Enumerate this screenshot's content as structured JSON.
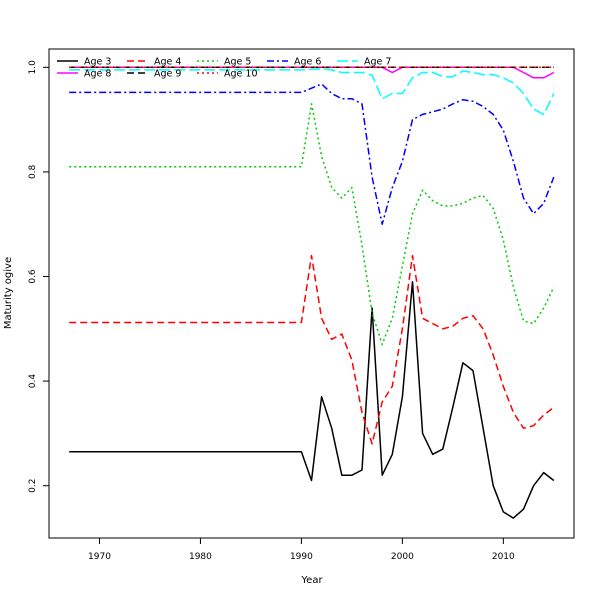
{
  "chart_data": {
    "type": "line",
    "title": "",
    "xlabel": "Year",
    "ylabel": "Maturity ogive",
    "xlim": [
      1965,
      2017
    ],
    "ylim": [
      0.1,
      1.035
    ],
    "xticks": [
      1970,
      1980,
      1990,
      2000,
      2010
    ],
    "yticks": [
      0.2,
      0.4,
      0.6,
      0.8,
      1.0
    ],
    "ytick_labels": [
      "0.2",
      "0.4",
      "0.6",
      "0.8",
      "1.0"
    ],
    "grid": false,
    "legend_position": "top-left",
    "legend_columns": 5,
    "series": [
      {
        "name": "Age 3",
        "color": "#000000",
        "dash": "solid",
        "points": [
          [
            1967,
            0.265
          ],
          [
            1990,
            0.265
          ],
          [
            1991,
            0.21
          ],
          [
            1992,
            0.37
          ],
          [
            1993,
            0.31
          ],
          [
            1994,
            0.22
          ],
          [
            1995,
            0.22
          ],
          [
            1996,
            0.23
          ],
          [
            1997,
            0.54
          ],
          [
            1998,
            0.22
          ],
          [
            1999,
            0.26
          ],
          [
            2000,
            0.37
          ],
          [
            2001,
            0.59
          ],
          [
            2002,
            0.3
          ],
          [
            2003,
            0.26
          ],
          [
            2004,
            0.27
          ],
          [
            2005,
            0.35
          ],
          [
            2006,
            0.435
          ],
          [
            2007,
            0.42
          ],
          [
            2008,
            0.31
          ],
          [
            2009,
            0.2
          ],
          [
            2010,
            0.15
          ],
          [
            2011,
            0.138
          ],
          [
            2012,
            0.155
          ],
          [
            2013,
            0.2
          ],
          [
            2014,
            0.225
          ],
          [
            2015,
            0.21
          ]
        ]
      },
      {
        "name": "Age 4",
        "color": "#ff0000",
        "dash": "dashed",
        "points": [
          [
            1967,
            0.512
          ],
          [
            1990,
            0.512
          ],
          [
            1991,
            0.64
          ],
          [
            1992,
            0.52
          ],
          [
            1993,
            0.48
          ],
          [
            1994,
            0.49
          ],
          [
            1995,
            0.44
          ],
          [
            1996,
            0.34
          ],
          [
            1997,
            0.28
          ],
          [
            1998,
            0.36
          ],
          [
            1999,
            0.39
          ],
          [
            2000,
            0.5
          ],
          [
            2001,
            0.64
          ],
          [
            2002,
            0.52
          ],
          [
            2003,
            0.51
          ],
          [
            2004,
            0.5
          ],
          [
            2005,
            0.505
          ],
          [
            2006,
            0.52
          ],
          [
            2007,
            0.525
          ],
          [
            2008,
            0.5
          ],
          [
            2009,
            0.45
          ],
          [
            2010,
            0.39
          ],
          [
            2011,
            0.34
          ],
          [
            2012,
            0.31
          ],
          [
            2013,
            0.315
          ],
          [
            2014,
            0.335
          ],
          [
            2015,
            0.35
          ]
        ]
      },
      {
        "name": "Age 5",
        "color": "#00cd00",
        "dash": "dotted",
        "points": [
          [
            1967,
            0.81
          ],
          [
            1990,
            0.81
          ],
          [
            1991,
            0.93
          ],
          [
            1992,
            0.83
          ],
          [
            1993,
            0.77
          ],
          [
            1994,
            0.75
          ],
          [
            1995,
            0.77
          ],
          [
            1996,
            0.66
          ],
          [
            1997,
            0.53
          ],
          [
            1998,
            0.47
          ],
          [
            1999,
            0.52
          ],
          [
            2000,
            0.62
          ],
          [
            2001,
            0.72
          ],
          [
            2002,
            0.765
          ],
          [
            2003,
            0.745
          ],
          [
            2004,
            0.735
          ],
          [
            2005,
            0.735
          ],
          [
            2006,
            0.74
          ],
          [
            2007,
            0.75
          ],
          [
            2008,
            0.755
          ],
          [
            2009,
            0.73
          ],
          [
            2010,
            0.67
          ],
          [
            2011,
            0.58
          ],
          [
            2012,
            0.515
          ],
          [
            2013,
            0.51
          ],
          [
            2014,
            0.54
          ],
          [
            2015,
            0.58
          ]
        ]
      },
      {
        "name": "Age 6",
        "color": "#0000ff",
        "dash": "dashdot",
        "points": [
          [
            1967,
            0.952
          ],
          [
            1990,
            0.952
          ],
          [
            1991,
            0.96
          ],
          [
            1992,
            0.968
          ],
          [
            1993,
            0.95
          ],
          [
            1994,
            0.94
          ],
          [
            1995,
            0.94
          ],
          [
            1996,
            0.93
          ],
          [
            1997,
            0.79
          ],
          [
            1998,
            0.7
          ],
          [
            1999,
            0.77
          ],
          [
            2000,
            0.82
          ],
          [
            2001,
            0.9
          ],
          [
            2002,
            0.91
          ],
          [
            2003,
            0.915
          ],
          [
            2004,
            0.92
          ],
          [
            2005,
            0.93
          ],
          [
            2006,
            0.938
          ],
          [
            2007,
            0.935
          ],
          [
            2008,
            0.925
          ],
          [
            2009,
            0.91
          ],
          [
            2010,
            0.88
          ],
          [
            2011,
            0.82
          ],
          [
            2012,
            0.75
          ],
          [
            2013,
            0.72
          ],
          [
            2014,
            0.74
          ],
          [
            2015,
            0.79
          ]
        ]
      },
      {
        "name": "Age 7",
        "color": "#00ffff",
        "dash": "longdash",
        "points": [
          [
            1967,
            0.995
          ],
          [
            1990,
            0.995
          ],
          [
            1991,
            0.996
          ],
          [
            1992,
            0.997
          ],
          [
            1993,
            0.995
          ],
          [
            1994,
            0.99
          ],
          [
            1995,
            0.99
          ],
          [
            1996,
            0.99
          ],
          [
            1997,
            0.985
          ],
          [
            1998,
            0.94
          ],
          [
            1999,
            0.95
          ],
          [
            2000,
            0.95
          ],
          [
            2001,
            0.98
          ],
          [
            2002,
            0.99
          ],
          [
            2003,
            0.99
          ],
          [
            2004,
            0.982
          ],
          [
            2005,
            0.982
          ],
          [
            2006,
            0.993
          ],
          [
            2007,
            0.99
          ],
          [
            2008,
            0.986
          ],
          [
            2009,
            0.986
          ],
          [
            2010,
            0.98
          ],
          [
            2011,
            0.97
          ],
          [
            2012,
            0.95
          ],
          [
            2013,
            0.92
          ],
          [
            2014,
            0.91
          ],
          [
            2015,
            0.95
          ]
        ]
      },
      {
        "name": "Age 8",
        "color": "#ff00ff",
        "dash": "solid",
        "points": [
          [
            1967,
            1.0
          ],
          [
            1990,
            1.0
          ],
          [
            1995,
            1.0
          ],
          [
            1998,
            1.0
          ],
          [
            1999,
            0.99
          ],
          [
            2000,
            1.0
          ],
          [
            2005,
            1.0
          ],
          [
            2010,
            1.0
          ],
          [
            2011,
            1.0
          ],
          [
            2012,
            0.99
          ],
          [
            2013,
            0.98
          ],
          [
            2014,
            0.98
          ],
          [
            2015,
            0.99
          ]
        ]
      },
      {
        "name": "Age 9",
        "color": "#000000",
        "dash": "dashed",
        "points": [
          [
            1967,
            1.0
          ],
          [
            2015,
            1.0
          ]
        ]
      },
      {
        "name": "Age 10",
        "color": "#ff0000",
        "dash": "dotted",
        "points": [
          [
            1967,
            1.0
          ],
          [
            2015,
            1.0
          ]
        ]
      }
    ]
  }
}
